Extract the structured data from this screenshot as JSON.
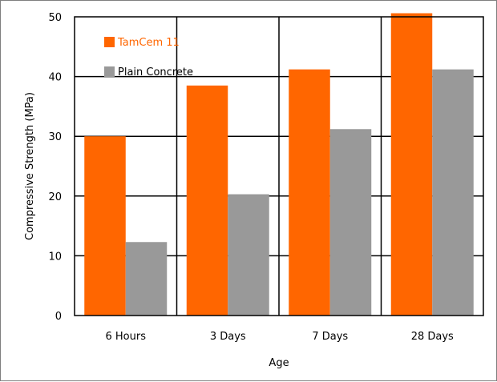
{
  "chart_data": {
    "type": "bar",
    "categories": [
      "6 Hours",
      "3 Days",
      "7 Days",
      "28 Days"
    ],
    "series": [
      {
        "name": "TamCem 11",
        "values": [
          30,
          38.5,
          41.2,
          50.6
        ],
        "color": "#ff6600"
      },
      {
        "name": "Plain Concrete",
        "values": [
          12.3,
          20.3,
          31.2,
          41.2
        ],
        "color": "#999999"
      }
    ],
    "xlabel": "Age",
    "ylabel": "Compressive Strength (MPa)",
    "ylim": [
      0,
      50
    ],
    "yticks": [
      "0",
      "10",
      "20",
      "30",
      "40",
      "50"
    ],
    "grid": true,
    "legend_position": "top-left"
  }
}
